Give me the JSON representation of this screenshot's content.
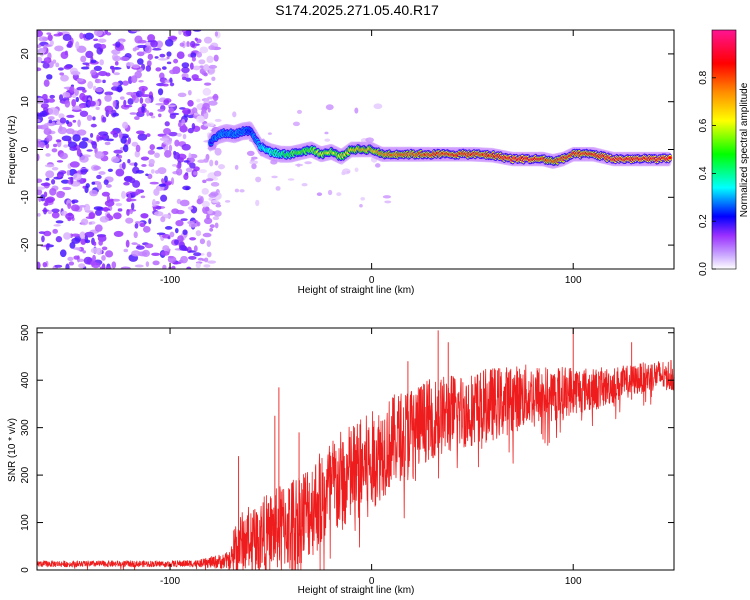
{
  "chart_data": [
    {
      "type": "heatmap",
      "title": "S174.2025.271.05.40.R17",
      "xlabel": "Height of straight line (km)",
      "ylabel": "Frequency (Hz)",
      "xlim": [
        -166,
        150
      ],
      "ylim": [
        -25,
        25
      ],
      "xticks": [
        -100,
        0,
        100
      ],
      "yticks": [
        -20,
        -10,
        0,
        10,
        20
      ],
      "colorbar": {
        "label": "Normalized spectral amplitude",
        "range": [
          0,
          1
        ],
        "ticks": [
          0.0,
          0.2,
          0.4,
          0.6,
          0.8
        ],
        "tick_labels": [
          "0.0",
          "0.2",
          "0.4",
          "0.6",
          "0.8"
        ],
        "colormap": [
          "#ffffff",
          "#9b30ff",
          "#0000ff",
          "#00ffff",
          "#00ff00",
          "#ffff00",
          "#ff8c00",
          "#ff0000",
          "#ff1493"
        ]
      },
      "noise_region_x": [
        -166,
        -80
      ],
      "signal_track": {
        "x": [
          -80,
          -76,
          -72,
          -68,
          -64,
          -60,
          -55,
          -50,
          -45,
          -40,
          -35,
          -30,
          -25,
          -20,
          -15,
          -10,
          -5,
          0,
          5,
          10,
          20,
          30,
          40,
          50,
          60,
          70,
          80,
          85,
          90,
          95,
          100,
          110,
          120,
          130,
          140,
          148
        ],
        "frequency": [
          1.5,
          3,
          3.5,
          3.2,
          3.8,
          4,
          0.5,
          -0.5,
          -1,
          -1,
          -0.5,
          0,
          -1,
          -0.5,
          -1.5,
          0,
          0,
          0,
          -1,
          -1,
          -1,
          -1,
          -1,
          -1,
          -1.2,
          -2,
          -2,
          -2,
          -2.5,
          -2,
          -1,
          -1,
          -2,
          -2,
          -2,
          -2
        ],
        "amplitude": [
          0.25,
          0.3,
          0.3,
          0.3,
          0.3,
          0.25,
          0.35,
          0.4,
          0.45,
          0.5,
          0.55,
          0.55,
          0.6,
          0.6,
          0.6,
          0.65,
          0.7,
          0.7,
          0.75,
          0.8,
          0.8,
          0.85,
          0.85,
          0.85,
          0.85,
          0.9,
          0.9,
          0.85,
          0.8,
          0.85,
          0.85,
          0.85,
          0.9,
          0.9,
          0.9,
          0.9
        ]
      }
    },
    {
      "type": "line",
      "title": "",
      "xlabel": "Height of straight line (km)",
      "ylabel": "SNR (10 * v/v)",
      "xlim": [
        -166,
        150
      ],
      "ylim": [
        0,
        510
      ],
      "xticks": [
        -100,
        0,
        100
      ],
      "yticks": [
        0,
        100,
        200,
        300,
        400,
        500
      ],
      "color": "#ee1c1c",
      "envelope": {
        "x": [
          -166,
          -140,
          -120,
          -100,
          -85,
          -70,
          -68,
          -60,
          -50,
          -40,
          -30,
          -20,
          -10,
          0,
          10,
          20,
          30,
          40,
          50,
          60,
          70,
          80,
          90,
          100,
          110,
          120,
          130,
          140,
          150
        ],
        "median": [
          13,
          13,
          13,
          13,
          14,
          20,
          50,
          70,
          80,
          100,
          130,
          170,
          200,
          230,
          270,
          300,
          320,
          330,
          340,
          350,
          360,
          370,
          370,
          380,
          380,
          390,
          400,
          410,
          410
        ],
        "spread": [
          10,
          10,
          10,
          10,
          12,
          30,
          90,
          110,
          130,
          150,
          160,
          170,
          170,
          160,
          150,
          140,
          130,
          130,
          120,
          120,
          110,
          100,
          90,
          80,
          70,
          60,
          50,
          50,
          50
        ]
      },
      "spikes": [
        {
          "x": -66,
          "y": 240
        },
        {
          "x": -48,
          "y": 325
        },
        {
          "x": -46,
          "y": 385
        },
        {
          "x": -36,
          "y": 290
        },
        {
          "x": 18,
          "y": 440
        },
        {
          "x": 33,
          "y": 505
        },
        {
          "x": 38,
          "y": 480
        },
        {
          "x": 100,
          "y": 510
        },
        {
          "x": 129,
          "y": 480
        }
      ]
    }
  ]
}
